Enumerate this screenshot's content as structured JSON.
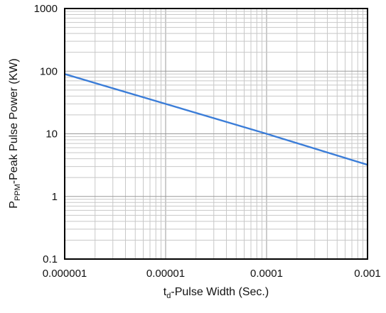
{
  "chart_data": {
    "type": "line",
    "x_scale": "log",
    "y_scale": "log",
    "xlim": [
      1e-06,
      0.001
    ],
    "ylim": [
      0.1,
      1000
    ],
    "grid": true,
    "x_ticks": [
      "0.000001",
      "0.00001",
      "0.0001",
      "0.001"
    ],
    "y_ticks": [
      "1000",
      "100",
      "10",
      "1",
      "0.1"
    ],
    "xlabel": {
      "prefix": "t",
      "sub": "d",
      "rest": "-Pulse Width (Sec.)"
    },
    "ylabel": {
      "prefix": "P",
      "sub": "PPM",
      "rest": "-Peak Pulse Power (KW)"
    },
    "series": [
      {
        "color": "#3b7dd8",
        "x": [
          1e-06,
          1e-05,
          0.0001,
          0.001
        ],
        "y": [
          90,
          30,
          10,
          3.2
        ]
      }
    ]
  }
}
